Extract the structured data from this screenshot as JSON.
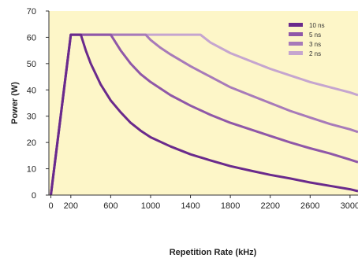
{
  "chart_data": {
    "type": "line",
    "xlabel": "Repetition Rate (kHz)",
    "ylabel": "Power (W)",
    "xlim": [
      -20,
      3080
    ],
    "ylim": [
      0,
      70
    ],
    "x_ticks": [
      0,
      200,
      600,
      1000,
      1400,
      1800,
      2200,
      2600,
      3000
    ],
    "y_ticks": [
      0,
      10,
      20,
      30,
      40,
      50,
      60,
      70
    ],
    "grid": false,
    "legend_position": "top-right",
    "background_color": "#fdf6c8",
    "series": [
      {
        "name": "10 ns",
        "color": "#6a2a8c",
        "points": [
          [
            0,
            0
          ],
          [
            200,
            61
          ],
          [
            300,
            61
          ],
          [
            350,
            55
          ],
          [
            400,
            50
          ],
          [
            500,
            42
          ],
          [
            600,
            36
          ],
          [
            700,
            31.5
          ],
          [
            800,
            27.5
          ],
          [
            900,
            24.5
          ],
          [
            1000,
            22
          ],
          [
            1200,
            18.5
          ],
          [
            1400,
            15.5
          ],
          [
            1600,
            13.2
          ],
          [
            1800,
            11
          ],
          [
            2000,
            9.3
          ],
          [
            2200,
            7.7
          ],
          [
            2400,
            6.3
          ],
          [
            2600,
            4.8
          ],
          [
            2800,
            3.5
          ],
          [
            3000,
            2.2
          ],
          [
            3080,
            1.5
          ]
        ]
      },
      {
        "name": "5 ns",
        "color": "#8f57a8",
        "points": [
          [
            0,
            0
          ],
          [
            200,
            61
          ],
          [
            600,
            61
          ],
          [
            650,
            58
          ],
          [
            700,
            55
          ],
          [
            800,
            50
          ],
          [
            900,
            46
          ],
          [
            1000,
            43
          ],
          [
            1200,
            38
          ],
          [
            1400,
            34
          ],
          [
            1600,
            30.5
          ],
          [
            1800,
            27.5
          ],
          [
            2000,
            25
          ],
          [
            2200,
            22.5
          ],
          [
            2400,
            20
          ],
          [
            2600,
            17.8
          ],
          [
            2800,
            15.8
          ],
          [
            3000,
            13.5
          ],
          [
            3080,
            12.5
          ]
        ]
      },
      {
        "name": "3 ns",
        "color": "#a77ab9",
        "points": [
          [
            0,
            0
          ],
          [
            200,
            61
          ],
          [
            950,
            61
          ],
          [
            1000,
            59
          ],
          [
            1100,
            56
          ],
          [
            1200,
            53.5
          ],
          [
            1400,
            49
          ],
          [
            1600,
            45
          ],
          [
            1800,
            41
          ],
          [
            2000,
            38
          ],
          [
            2200,
            35
          ],
          [
            2400,
            32
          ],
          [
            2600,
            29.5
          ],
          [
            2800,
            27
          ],
          [
            3000,
            25
          ],
          [
            3080,
            24
          ]
        ]
      },
      {
        "name": "2 ns",
        "color": "#c5a5cf",
        "points": [
          [
            0,
            0
          ],
          [
            200,
            61
          ],
          [
            1500,
            61
          ],
          [
            1550,
            59.5
          ],
          [
            1600,
            58
          ],
          [
            1800,
            54
          ],
          [
            2000,
            51
          ],
          [
            2200,
            48
          ],
          [
            2400,
            45.5
          ],
          [
            2600,
            43
          ],
          [
            2800,
            41
          ],
          [
            3000,
            39
          ],
          [
            3080,
            38
          ]
        ]
      }
    ]
  }
}
